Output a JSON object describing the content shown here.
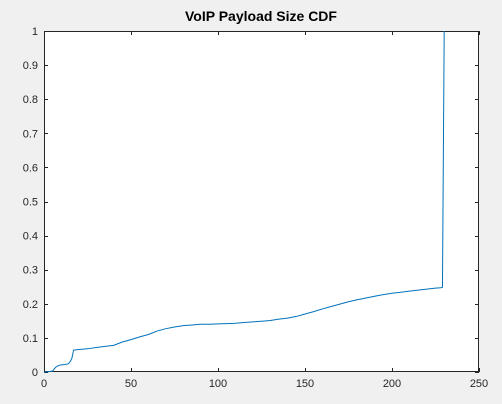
{
  "chart_data": {
    "type": "line",
    "title": "VoIP Payload Size CDF",
    "xlabel": "",
    "ylabel": "",
    "xlim": [
      0,
      250
    ],
    "ylim": [
      0,
      1
    ],
    "xticks": [
      0,
      50,
      100,
      150,
      200,
      250
    ],
    "yticks": [
      0,
      0.1,
      0.2,
      0.3,
      0.4,
      0.5,
      0.6,
      0.7,
      0.8,
      0.9,
      1
    ],
    "grid": false,
    "legend": "none",
    "colors": {
      "series": "#0072bd",
      "axes": "#262626",
      "plot_background": "#ffffff",
      "figure_background": "#f0f0f0"
    },
    "series": [
      {
        "x": [
          0,
          3,
          5,
          6,
          7,
          8,
          9,
          12,
          14,
          15,
          16,
          17,
          20,
          25,
          30,
          35,
          40,
          45,
          50,
          55,
          60,
          65,
          70,
          75,
          80,
          85,
          90,
          95,
          100,
          105,
          110,
          115,
          120,
          125,
          130,
          135,
          140,
          145,
          150,
          155,
          160,
          165,
          170,
          175,
          180,
          185,
          190,
          195,
          200,
          205,
          210,
          215,
          220,
          225,
          228,
          229,
          230
        ],
        "y": [
          0,
          0.001,
          0.003,
          0.01,
          0.015,
          0.018,
          0.02,
          0.022,
          0.024,
          0.03,
          0.04,
          0.064,
          0.066,
          0.068,
          0.072,
          0.075,
          0.078,
          0.088,
          0.095,
          0.103,
          0.11,
          0.12,
          0.127,
          0.132,
          0.136,
          0.138,
          0.14,
          0.14,
          0.141,
          0.142,
          0.143,
          0.145,
          0.147,
          0.149,
          0.151,
          0.155,
          0.158,
          0.163,
          0.17,
          0.177,
          0.185,
          0.192,
          0.199,
          0.206,
          0.212,
          0.217,
          0.222,
          0.227,
          0.231,
          0.234,
          0.237,
          0.24,
          0.243,
          0.246,
          0.247,
          0.248,
          1.0
        ]
      }
    ]
  }
}
